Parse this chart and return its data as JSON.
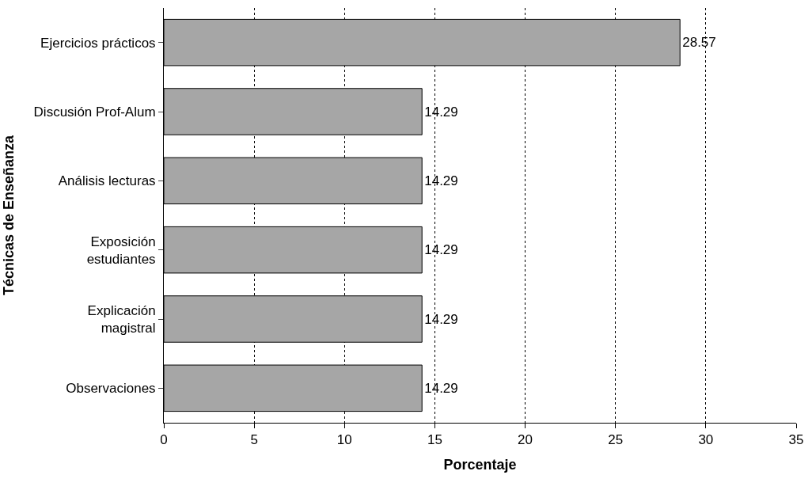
{
  "chart_data": {
    "type": "bar",
    "orientation": "horizontal",
    "xlabel": "Porcentaje",
    "ylabel": "Técnicas de Enseñanza",
    "categories": [
      "Ejercicios prácticos",
      "Discusión Prof-Alum",
      "Análisis lecturas",
      "Exposición\nestudiantes",
      "Explicación\nmagistral",
      "Observaciones"
    ],
    "values": [
      28.57,
      14.29,
      14.29,
      14.29,
      14.29,
      14.29
    ],
    "color": "#a6a6a6",
    "xlim": [
      0,
      35
    ],
    "xticks": [
      0,
      5,
      10,
      15,
      20,
      25,
      30,
      35
    ],
    "grid": "x",
    "data_labels": true,
    "legend": false
  }
}
